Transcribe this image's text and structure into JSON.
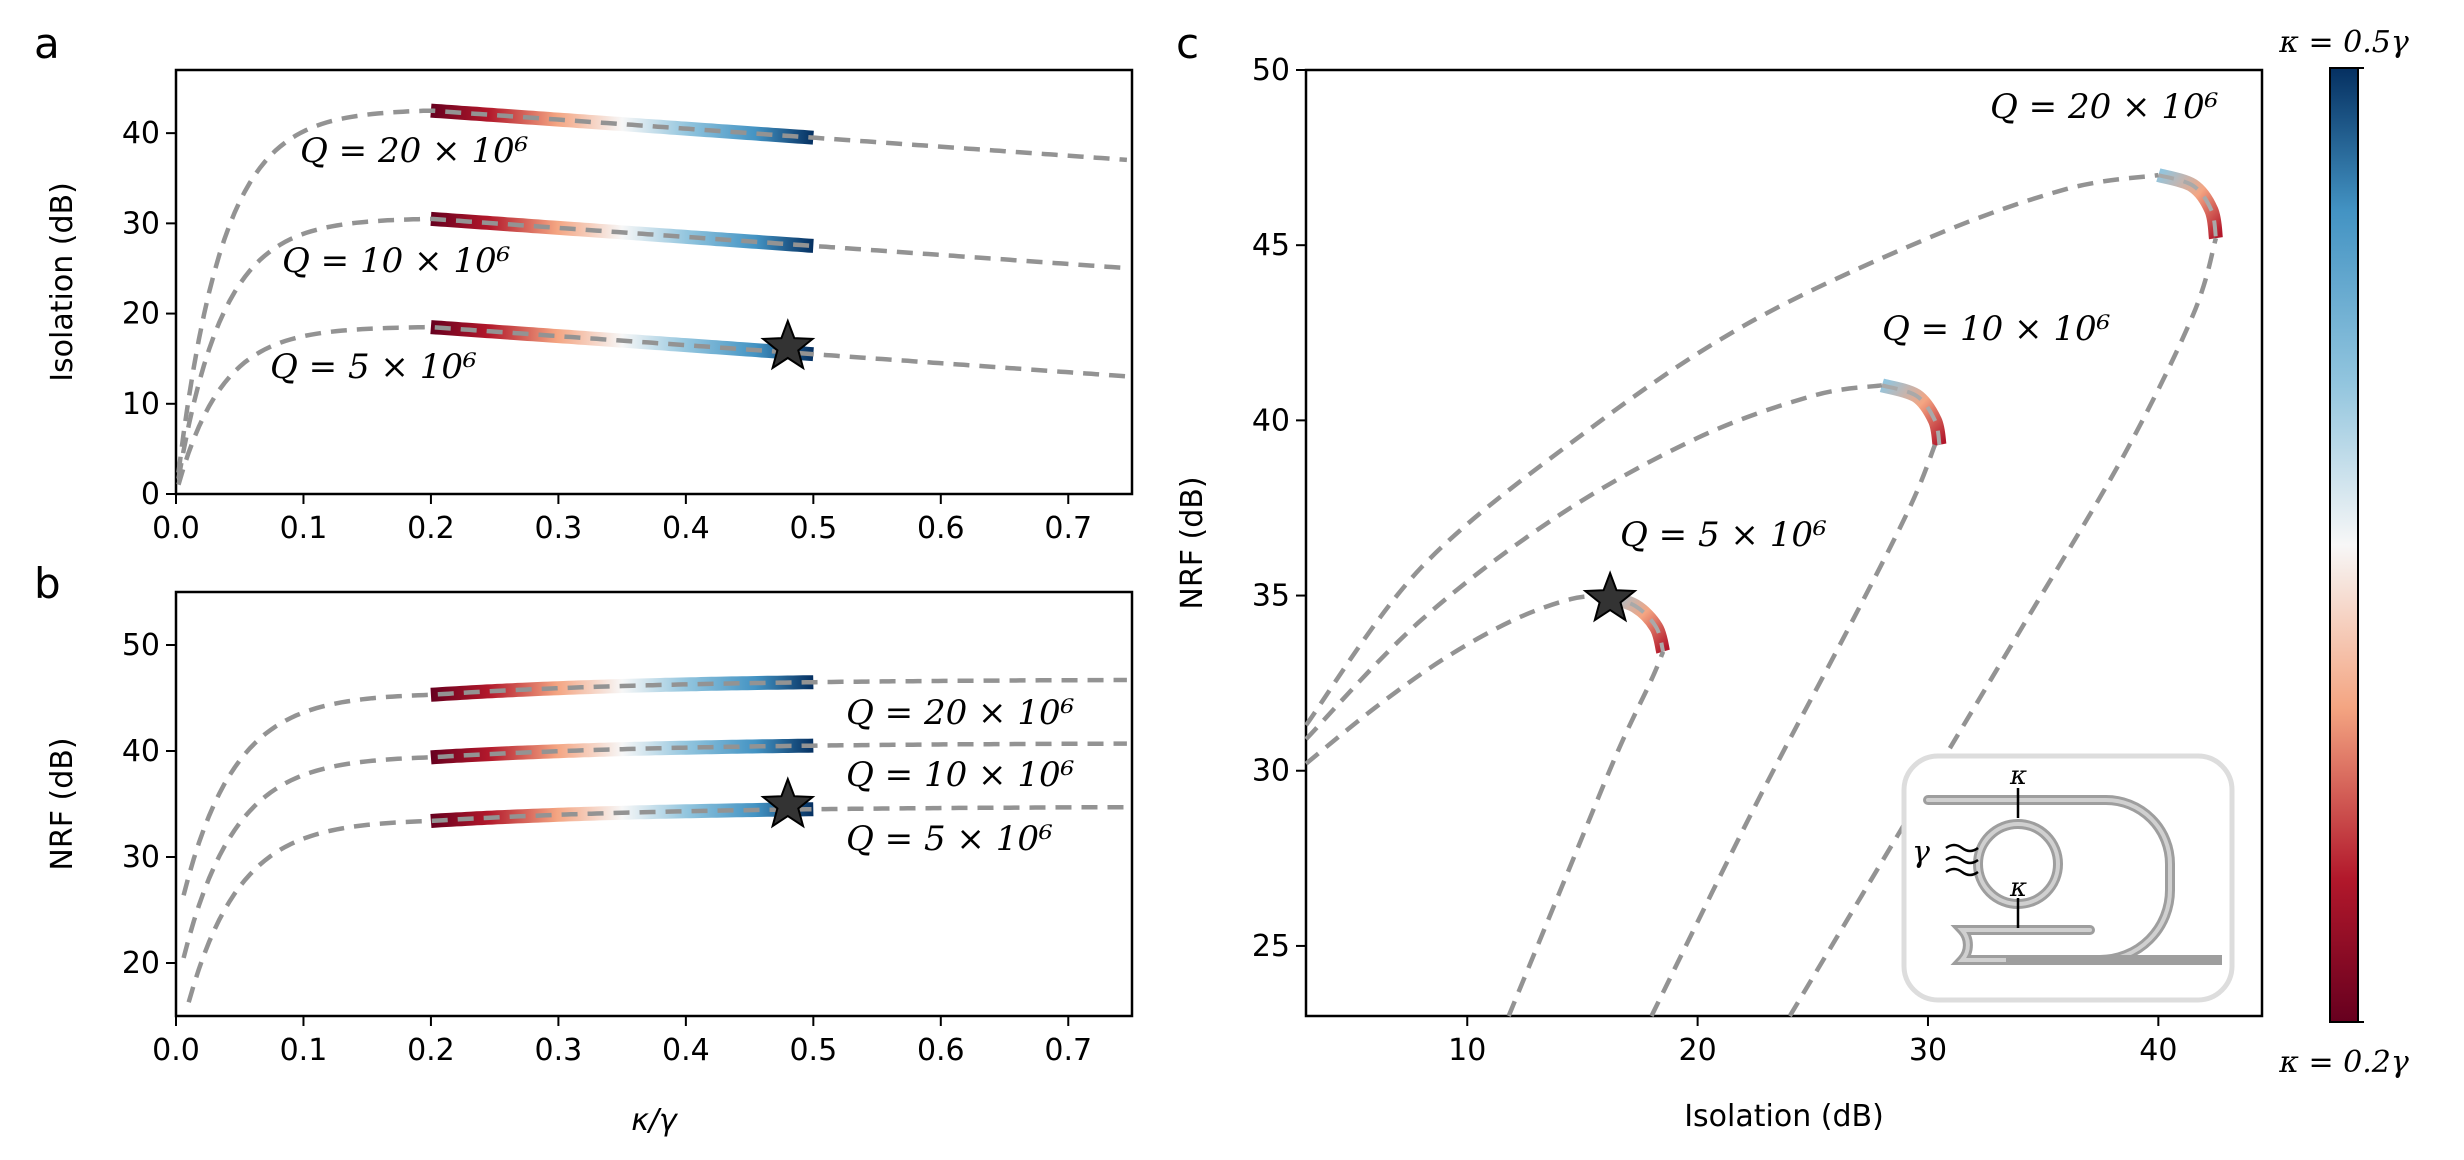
{
  "colors": {
    "dashed_line": "#939393",
    "cmap_low": "#67001f",
    "cmap_mid": "#f7f7f7",
    "cmap_high": "#053061",
    "star_fill": "#333333"
  },
  "chart_data": [
    {
      "panel": "a",
      "type": "line",
      "xlabel": "κ/γ",
      "ylabel": "Isolation (dB)",
      "xlim": [
        0,
        0.75
      ],
      "ylim": [
        0,
        47
      ],
      "xticks": [
        "0.0",
        "0.1",
        "0.2",
        "0.3",
        "0.4",
        "0.5",
        "0.6",
        "0.7"
      ],
      "yticks": [
        "0",
        "10",
        "20",
        "30",
        "40"
      ],
      "colored_range": [
        0.2,
        0.5
      ],
      "series": [
        {
          "name": "Q = 20 × 10⁶",
          "peak_x": 0.2,
          "peak_y": 42.5,
          "end_y": 37
        },
        {
          "name": "Q = 10 × 10⁶",
          "peak_x": 0.2,
          "peak_y": 30.5,
          "end_y": 25
        },
        {
          "name": "Q = 5 × 10⁶",
          "peak_x": 0.2,
          "peak_y": 18.5,
          "end_y": 13
        }
      ],
      "annotations": [
        "Q = 20 × 10⁶",
        "Q = 10 × 10⁶",
        "Q = 5 × 10⁶"
      ],
      "star": {
        "x": 0.48,
        "y": 16.3
      }
    },
    {
      "panel": "b",
      "type": "line",
      "xlabel": "κ/γ",
      "ylabel": "NRF (dB)",
      "xlim": [
        0,
        0.75
      ],
      "ylim": [
        15,
        55
      ],
      "xticks": [
        "0.0",
        "0.1",
        "0.2",
        "0.3",
        "0.4",
        "0.5",
        "0.6",
        "0.7"
      ],
      "yticks": [
        "20",
        "30",
        "40",
        "50"
      ],
      "colored_range": [
        0.2,
        0.5
      ],
      "series": [
        {
          "name": "Q = 20 × 10⁶",
          "start_y": 45.3,
          "end_y": 46.7
        },
        {
          "name": "Q = 10 × 10⁶",
          "start_y": 39.4,
          "end_y": 40.7
        },
        {
          "name": "Q = 5 × 10⁶",
          "start_y": 33.4,
          "end_y": 34.7
        }
      ],
      "annotations": [
        "Q = 20 × 10⁶",
        "Q = 10 × 10⁶",
        "Q = 5 × 10⁶"
      ],
      "star": {
        "x": 0.48,
        "y": 34.9
      }
    },
    {
      "panel": "c",
      "type": "line",
      "xlabel": "Isolation (dB)",
      "ylabel": "NRF (dB)",
      "xlim": [
        3,
        44.5
      ],
      "ylim": [
        23,
        50
      ],
      "xticks": [
        "10",
        "20",
        "30",
        "40"
      ],
      "yticks": [
        "25",
        "30",
        "35",
        "40",
        "45",
        "50"
      ],
      "series": [
        {
          "name": "Q = 20 × 10⁶",
          "apex": [
            40,
            47
          ],
          "end": [
            42.5,
            45.2
          ]
        },
        {
          "name": "Q = 10 × 10⁶",
          "apex": [
            28,
            41
          ],
          "end": [
            30.5,
            39.3
          ]
        },
        {
          "name": "Q = 5 × 10⁶",
          "apex": [
            16,
            35
          ],
          "end": [
            18.5,
            33.4
          ]
        }
      ],
      "annotations": [
        "Q = 20 × 10⁶",
        "Q = 10 × 10⁶",
        "Q = 5 × 10⁶"
      ],
      "star": {
        "x": 16.2,
        "y": 34.9
      }
    }
  ],
  "panels": {
    "a": "a",
    "b": "b",
    "c": "c"
  },
  "colorbar": {
    "top_label": "κ = 0.5γ",
    "bottom_label": "κ = 0.2γ"
  },
  "inset": {
    "kappa_top": "κ",
    "kappa_bottom": "κ",
    "gamma": "γ"
  }
}
